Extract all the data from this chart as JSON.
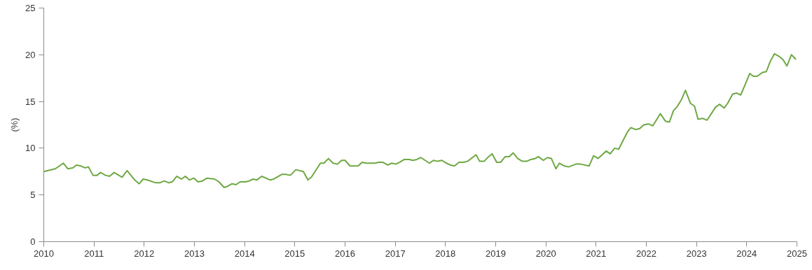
{
  "chart_data": {
    "type": "line",
    "ylabel": "(%)",
    "x": [
      2010.0,
      2010.23,
      2010.39,
      2010.48,
      2010.58,
      2010.65,
      2010.74,
      2010.82,
      2010.89,
      2010.98,
      2011.06,
      2011.13,
      2011.23,
      2011.31,
      2011.4,
      2011.56,
      2011.66,
      2011.81,
      2011.9,
      2011.98,
      2012.06,
      2012.23,
      2012.31,
      2012.4,
      2012.49,
      2012.56,
      2012.65,
      2012.74,
      2012.82,
      2012.9,
      2012.99,
      2013.07,
      2013.16,
      2013.25,
      2013.4,
      2013.49,
      2013.59,
      2013.65,
      2013.75,
      2013.83,
      2013.91,
      2014.02,
      2014.09,
      2014.17,
      2014.24,
      2014.34,
      2014.51,
      2014.58,
      2014.74,
      2014.82,
      2014.91,
      2015.02,
      2015.17,
      2015.26,
      2015.33,
      2015.51,
      2015.58,
      2015.67,
      2015.76,
      2015.85,
      2015.93,
      2016.0,
      2016.1,
      2016.26,
      2016.34,
      2016.42,
      2016.5,
      2016.6,
      2016.67,
      2016.75,
      2016.85,
      2016.93,
      2017.01,
      2017.09,
      2017.18,
      2017.28,
      2017.35,
      2017.43,
      2017.51,
      2017.68,
      2017.76,
      2017.84,
      2017.93,
      2018.02,
      2018.1,
      2018.18,
      2018.27,
      2018.36,
      2018.44,
      2018.61,
      2018.68,
      2018.77,
      2018.86,
      2018.93,
      2019.02,
      2019.1,
      2019.19,
      2019.27,
      2019.35,
      2019.44,
      2019.53,
      2019.62,
      2019.7,
      2019.79,
      2019.85,
      2019.95,
      2020.03,
      2020.11,
      2020.2,
      2020.27,
      2020.37,
      2020.45,
      2020.6,
      2020.69,
      2020.86,
      2020.95,
      2021.04,
      2021.2,
      2021.28,
      2021.37,
      2021.45,
      2021.62,
      2021.69,
      2021.79,
      2021.87,
      2021.95,
      2022.04,
      2022.13,
      2022.28,
      2022.38,
      2022.46,
      2022.54,
      2022.62,
      2022.7,
      2022.78,
      2022.88,
      2022.96,
      2023.03,
      2023.12,
      2023.21,
      2023.38,
      2023.46,
      2023.55,
      2023.62,
      2023.72,
      2023.8,
      2023.88,
      2023.96,
      2024.06,
      2024.13,
      2024.21,
      2024.31,
      2024.39,
      2024.47,
      2024.55,
      2024.65,
      2024.72,
      2024.8,
      2024.89,
      2024.98
    ],
    "series": [
      {
        "color": "#6ea843",
        "values": [
          7.5,
          7.8,
          8.4,
          7.8,
          7.9,
          8.2,
          8.1,
          7.9,
          8.0,
          7.1,
          7.1,
          7.4,
          7.1,
          7.0,
          7.4,
          6.9,
          7.6,
          6.6,
          6.2,
          6.7,
          6.6,
          6.3,
          6.3,
          6.5,
          6.3,
          6.4,
          7.0,
          6.7,
          7.0,
          6.6,
          6.8,
          6.4,
          6.5,
          6.8,
          6.7,
          6.4,
          5.8,
          5.9,
          6.2,
          6.1,
          6.4,
          6.4,
          6.5,
          6.7,
          6.6,
          7.0,
          6.6,
          6.7,
          7.2,
          7.2,
          7.1,
          7.7,
          7.5,
          6.6,
          6.9,
          8.4,
          8.4,
          8.9,
          8.4,
          8.3,
          8.7,
          8.7,
          8.1,
          8.1,
          8.5,
          8.4,
          8.4,
          8.4,
          8.5,
          8.5,
          8.2,
          8.4,
          8.3,
          8.5,
          8.8,
          8.8,
          8.7,
          8.8,
          9.0,
          8.4,
          8.7,
          8.6,
          8.7,
          8.4,
          8.2,
          8.1,
          8.5,
          8.5,
          8.6,
          9.3,
          8.6,
          8.6,
          9.1,
          9.4,
          8.5,
          8.5,
          9.1,
          9.1,
          9.5,
          8.9,
          8.6,
          8.6,
          8.8,
          8.9,
          9.1,
          8.7,
          9.0,
          8.9,
          7.8,
          8.4,
          8.1,
          8.0,
          8.3,
          8.3,
          8.1,
          9.2,
          8.9,
          9.7,
          9.4,
          10.0,
          9.9,
          11.7,
          12.2,
          12.0,
          12.1,
          12.5,
          12.6,
          12.4,
          13.7,
          12.9,
          12.8,
          14.0,
          14.5,
          15.2,
          16.2,
          14.8,
          14.5,
          13.1,
          13.2,
          13.0,
          14.4,
          14.7,
          14.3,
          14.8,
          15.8,
          15.9,
          15.7,
          16.7,
          18.0,
          17.7,
          17.7,
          18.1,
          18.2,
          19.3,
          20.1,
          19.8,
          19.5,
          18.8,
          20.0,
          19.5
        ]
      }
    ],
    "xlim": [
      2010,
      2025
    ],
    "ylim": [
      0,
      25
    ],
    "xticks": [
      2010,
      2011,
      2012,
      2013,
      2014,
      2015,
      2016,
      2017,
      2018,
      2019,
      2020,
      2021,
      2022,
      2023,
      2024,
      2025
    ],
    "yticks": [
      0,
      5,
      10,
      15,
      20,
      25
    ],
    "grid": false,
    "marker": "none",
    "line_style": "solid"
  }
}
